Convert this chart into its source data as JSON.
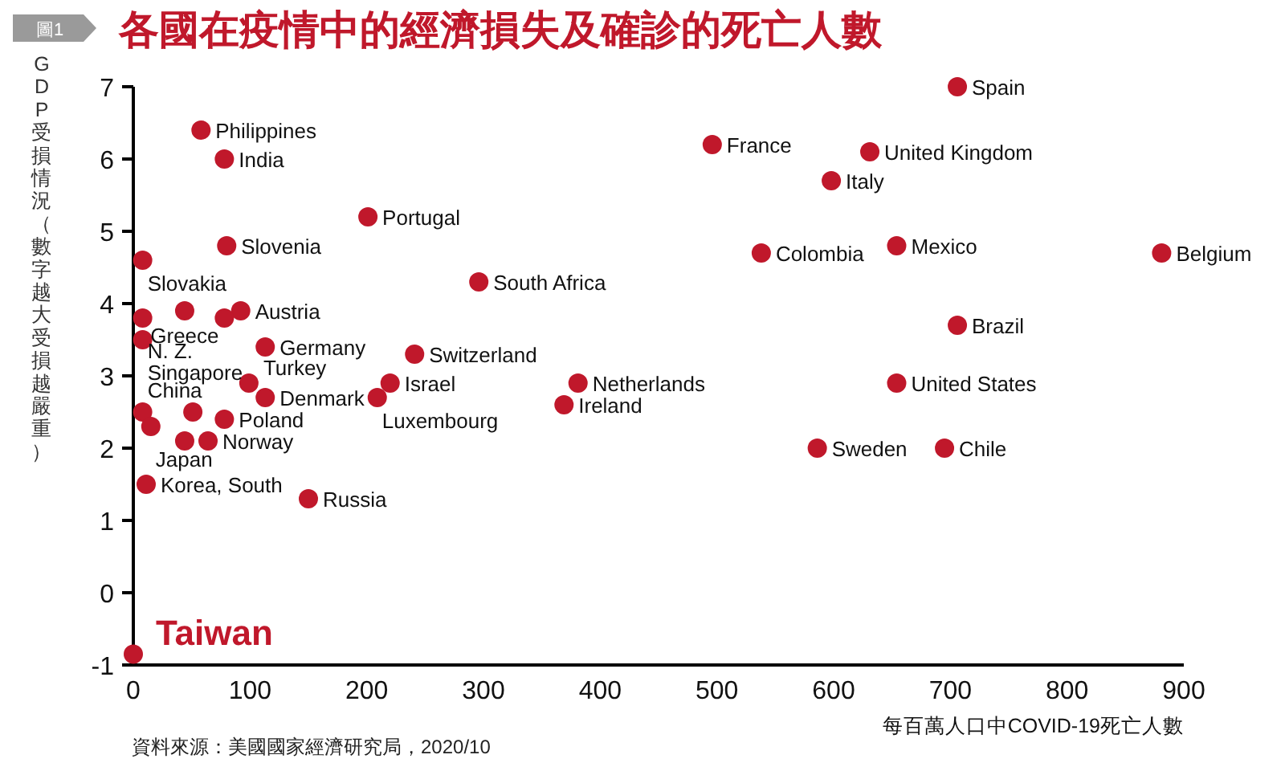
{
  "chart_data": {
    "type": "scatter",
    "title": "各國在疫情中的經濟損失及確診的死亡人數",
    "xlabel": "每百萬人口中COVID-19死亡人數",
    "ylabel": "GDP受損情況（數字越大受損越嚴重）",
    "xlim": [
      0,
      900
    ],
    "ylim": [
      -1,
      7
    ],
    "xticks": [
      0,
      100,
      200,
      300,
      400,
      500,
      600,
      700,
      800,
      900
    ],
    "yticks": [
      -1,
      0,
      1,
      2,
      3,
      4,
      5,
      6,
      7
    ],
    "marker": "circle",
    "series": [
      {
        "color": "#c0182b",
        "x": [
          58,
          78,
          201,
          80,
          8,
          44,
          92,
          78,
          8,
          8,
          113,
          296,
          241,
          99,
          113,
          220,
          209,
          8,
          51,
          15,
          78,
          44,
          64,
          11,
          150,
          706,
          496,
          631,
          598,
          538,
          654,
          881,
          706,
          381,
          369,
          654,
          586,
          695
        ],
        "values": [
          6.4,
          6.0,
          5.2,
          4.8,
          4.6,
          3.9,
          3.9,
          3.8,
          3.8,
          3.5,
          3.4,
          4.3,
          3.3,
          2.9,
          2.7,
          2.9,
          2.7,
          2.5,
          2.5,
          2.3,
          2.4,
          2.1,
          2.1,
          1.5,
          1.3,
          7.0,
          6.2,
          6.1,
          5.7,
          4.7,
          4.8,
          4.7,
          3.7,
          2.9,
          2.6,
          2.9,
          2.0,
          2.0
        ]
      },
      {
        "name": "Taiwan",
        "color": "#c0182b",
        "x": [
          0
        ],
        "values": [
          -0.85
        ]
      }
    ],
    "annotations": [
      "圖1",
      "資料來源：美國國家經濟研究局，2020/10",
      {
        "text": "Philippines",
        "x": 58,
        "y": 6.4
      },
      {
        "text": "India",
        "x": 78,
        "y": 6.0
      },
      {
        "text": "Portugal",
        "x": 201,
        "y": 5.2
      },
      {
        "text": "Slovenia",
        "x": 80,
        "y": 4.8
      },
      {
        "text": "Slovakia",
        "x": 8,
        "y": 4.6
      },
      {
        "text": "Greece",
        "x": 44,
        "y": 3.9
      },
      {
        "text": "Austria",
        "x": 92,
        "y": 3.9
      },
      {
        "text": "N. Z.",
        "x": 8,
        "y": 3.8
      },
      {
        "text": "Singapore",
        "x": 8,
        "y": 3.5
      },
      {
        "text": "Germany",
        "x": 113,
        "y": 3.4
      },
      {
        "text": "South Africa",
        "x": 296,
        "y": 4.3
      },
      {
        "text": "Switzerland",
        "x": 241,
        "y": 3.3
      },
      {
        "text": "Turkey",
        "x": 99,
        "y": 2.9
      },
      {
        "text": "Denmark",
        "x": 113,
        "y": 2.7
      },
      {
        "text": "Israel",
        "x": 220,
        "y": 2.9
      },
      {
        "text": "Luxembourg",
        "x": 209,
        "y": 2.7
      },
      {
        "text": "China",
        "x": 8,
        "y": 2.5
      },
      {
        "text": "Japan",
        "x": 15,
        "y": 2.3
      },
      {
        "text": "Poland",
        "x": 78,
        "y": 2.4
      },
      {
        "text": "Norway",
        "x": 64,
        "y": 2.1
      },
      {
        "text": "Korea, South",
        "x": 11,
        "y": 1.5
      },
      {
        "text": "Russia",
        "x": 150,
        "y": 1.3
      },
      {
        "text": "Spain",
        "x": 706,
        "y": 7.0
      },
      {
        "text": "France",
        "x": 496,
        "y": 6.2
      },
      {
        "text": "United Kingdom",
        "x": 631,
        "y": 6.1
      },
      {
        "text": "Italy",
        "x": 598,
        "y": 5.7
      },
      {
        "text": "Colombia",
        "x": 538,
        "y": 4.7
      },
      {
        "text": "Mexico",
        "x": 654,
        "y": 4.8
      },
      {
        "text": "Belgium",
        "x": 881,
        "y": 4.7
      },
      {
        "text": "Brazil",
        "x": 706,
        "y": 3.7
      },
      {
        "text": "Netherlands",
        "x": 381,
        "y": 2.9
      },
      {
        "text": "Ireland",
        "x": 369,
        "y": 2.6
      },
      {
        "text": "United States",
        "x": 654,
        "y": 2.9
      },
      {
        "text": "Sweden",
        "x": 586,
        "y": 2.0
      },
      {
        "text": "Chile",
        "x": 695,
        "y": 2.0
      }
    ]
  }
}
